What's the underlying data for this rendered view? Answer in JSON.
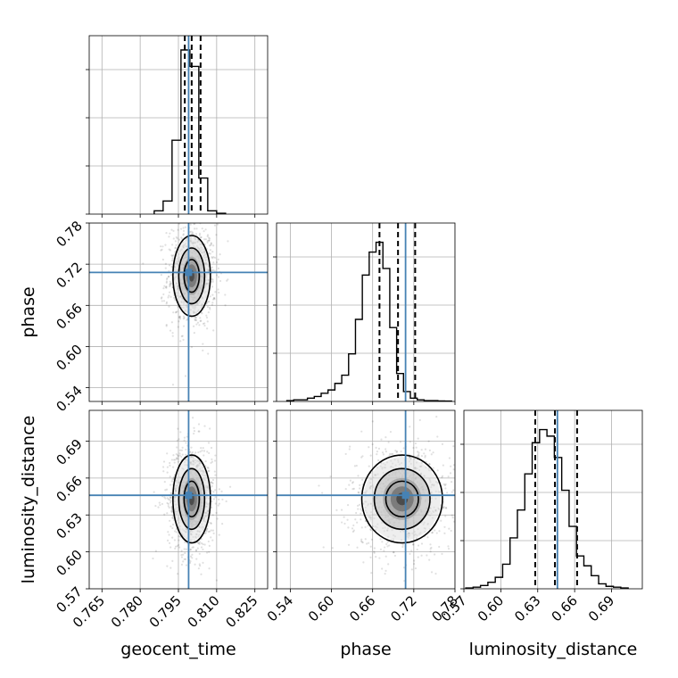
{
  "chart_data": {
    "type": "corner",
    "parameters": [
      {
        "name": "geocent_time",
        "label": "geocent_time",
        "range": [
          0.76,
          0.83
        ],
        "ticks": [
          0.765,
          0.78,
          0.795,
          0.81,
          0.825
        ],
        "tick_labels": [
          "0.765",
          "0.780",
          "0.795",
          "0.810",
          "0.825"
        ],
        "truth": 0.799,
        "quantiles": [
          0.7975,
          0.8002,
          0.8037
        ]
      },
      {
        "name": "phase",
        "label": "phase",
        "range": [
          0.52,
          0.78
        ],
        "ticks": [
          0.54,
          0.6,
          0.66,
          0.72,
          0.78
        ],
        "tick_labels": [
          "0.54",
          "0.60",
          "0.66",
          "0.72",
          "0.78"
        ],
        "truth": 0.708,
        "quantiles": [
          0.67,
          0.697,
          0.722
        ]
      },
      {
        "name": "luminosity_distance",
        "label": "luminosity_distance",
        "range": [
          0.57,
          0.715
        ],
        "ticks": [
          0.57,
          0.6,
          0.63,
          0.66,
          0.69
        ],
        "tick_labels": [
          "0.57",
          "0.60",
          "0.63",
          "0.66",
          "0.69"
        ],
        "truth": 0.646,
        "quantiles": [
          0.628,
          0.644,
          0.662
        ]
      }
    ],
    "histograms": [
      {
        "param": "geocent_time",
        "bin_edges": [
          0.7855,
          0.789,
          0.7925,
          0.796,
          0.7995,
          0.803,
          0.8065,
          0.81,
          0.8135
        ],
        "counts": [
          0.02,
          0.08,
          0.45,
          1.0,
          0.9,
          0.22,
          0.02,
          0.005
        ]
      },
      {
        "param": "phase",
        "bin_edges": [
          0.535,
          0.545,
          0.555,
          0.565,
          0.575,
          0.585,
          0.595,
          0.605,
          0.615,
          0.625,
          0.635,
          0.645,
          0.655,
          0.665,
          0.675,
          0.685,
          0.695,
          0.705,
          0.715,
          0.725,
          0.735,
          0.745,
          0.755,
          0.765,
          0.775
        ],
        "counts": [
          0.005,
          0.01,
          0.01,
          0.02,
          0.03,
          0.05,
          0.07,
          0.11,
          0.16,
          0.29,
          0.5,
          0.77,
          0.91,
          0.97,
          0.81,
          0.45,
          0.17,
          0.06,
          0.02,
          0.01,
          0.005,
          0.005,
          0.003,
          0.002
        ]
      },
      {
        "param": "luminosity_distance",
        "bin_edges": [
          0.5715,
          0.5775,
          0.5835,
          0.5895,
          0.5955,
          0.6015,
          0.6075,
          0.6135,
          0.6195,
          0.6255,
          0.6315,
          0.6375,
          0.6435,
          0.6495,
          0.6555,
          0.6615,
          0.6675,
          0.6735,
          0.6795,
          0.6855,
          0.6915,
          0.6975,
          0.7035
        ],
        "counts": [
          0.005,
          0.01,
          0.02,
          0.04,
          0.07,
          0.15,
          0.31,
          0.48,
          0.7,
          0.89,
          0.97,
          0.93,
          0.8,
          0.6,
          0.38,
          0.2,
          0.14,
          0.08,
          0.03,
          0.015,
          0.01,
          0.005
        ]
      }
    ],
    "pairs": [
      {
        "x": "geocent_time",
        "y": "phase",
        "center": [
          0.8002,
          0.703
        ],
        "spread": [
          0.0035,
          0.028
        ]
      },
      {
        "x": "geocent_time",
        "y": "luminosity_distance",
        "center": [
          0.8002,
          0.643
        ],
        "spread": [
          0.0035,
          0.017
        ]
      },
      {
        "x": "phase",
        "y": "luminosity_distance",
        "center": [
          0.703,
          0.643
        ],
        "spread": [
          0.028,
          0.017
        ]
      }
    ],
    "truth_color": "#4682b4",
    "quantile_style": "dashed",
    "grid": true
  }
}
